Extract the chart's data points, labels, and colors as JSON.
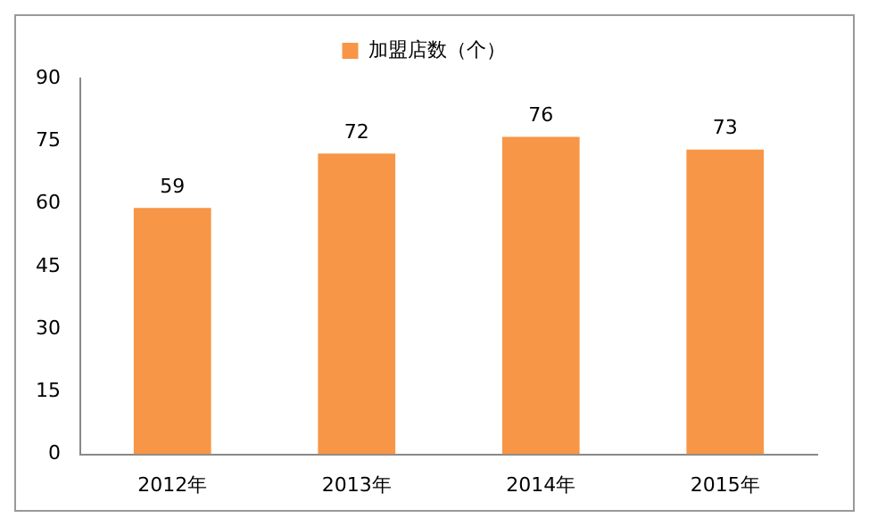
{
  "chart_data": {
    "type": "bar",
    "categories": [
      "2012年",
      "2013年",
      "2014年",
      "2015年"
    ],
    "series": [
      {
        "name": "加盟店数（个）",
        "color": "#f79646",
        "values": [
          59,
          72,
          76,
          73
        ]
      }
    ],
    "ylim": [
      0,
      90
    ],
    "yticks": [
      0,
      15,
      30,
      45,
      60,
      75,
      90
    ],
    "grid": false,
    "legend": "top",
    "data_labels": true
  }
}
